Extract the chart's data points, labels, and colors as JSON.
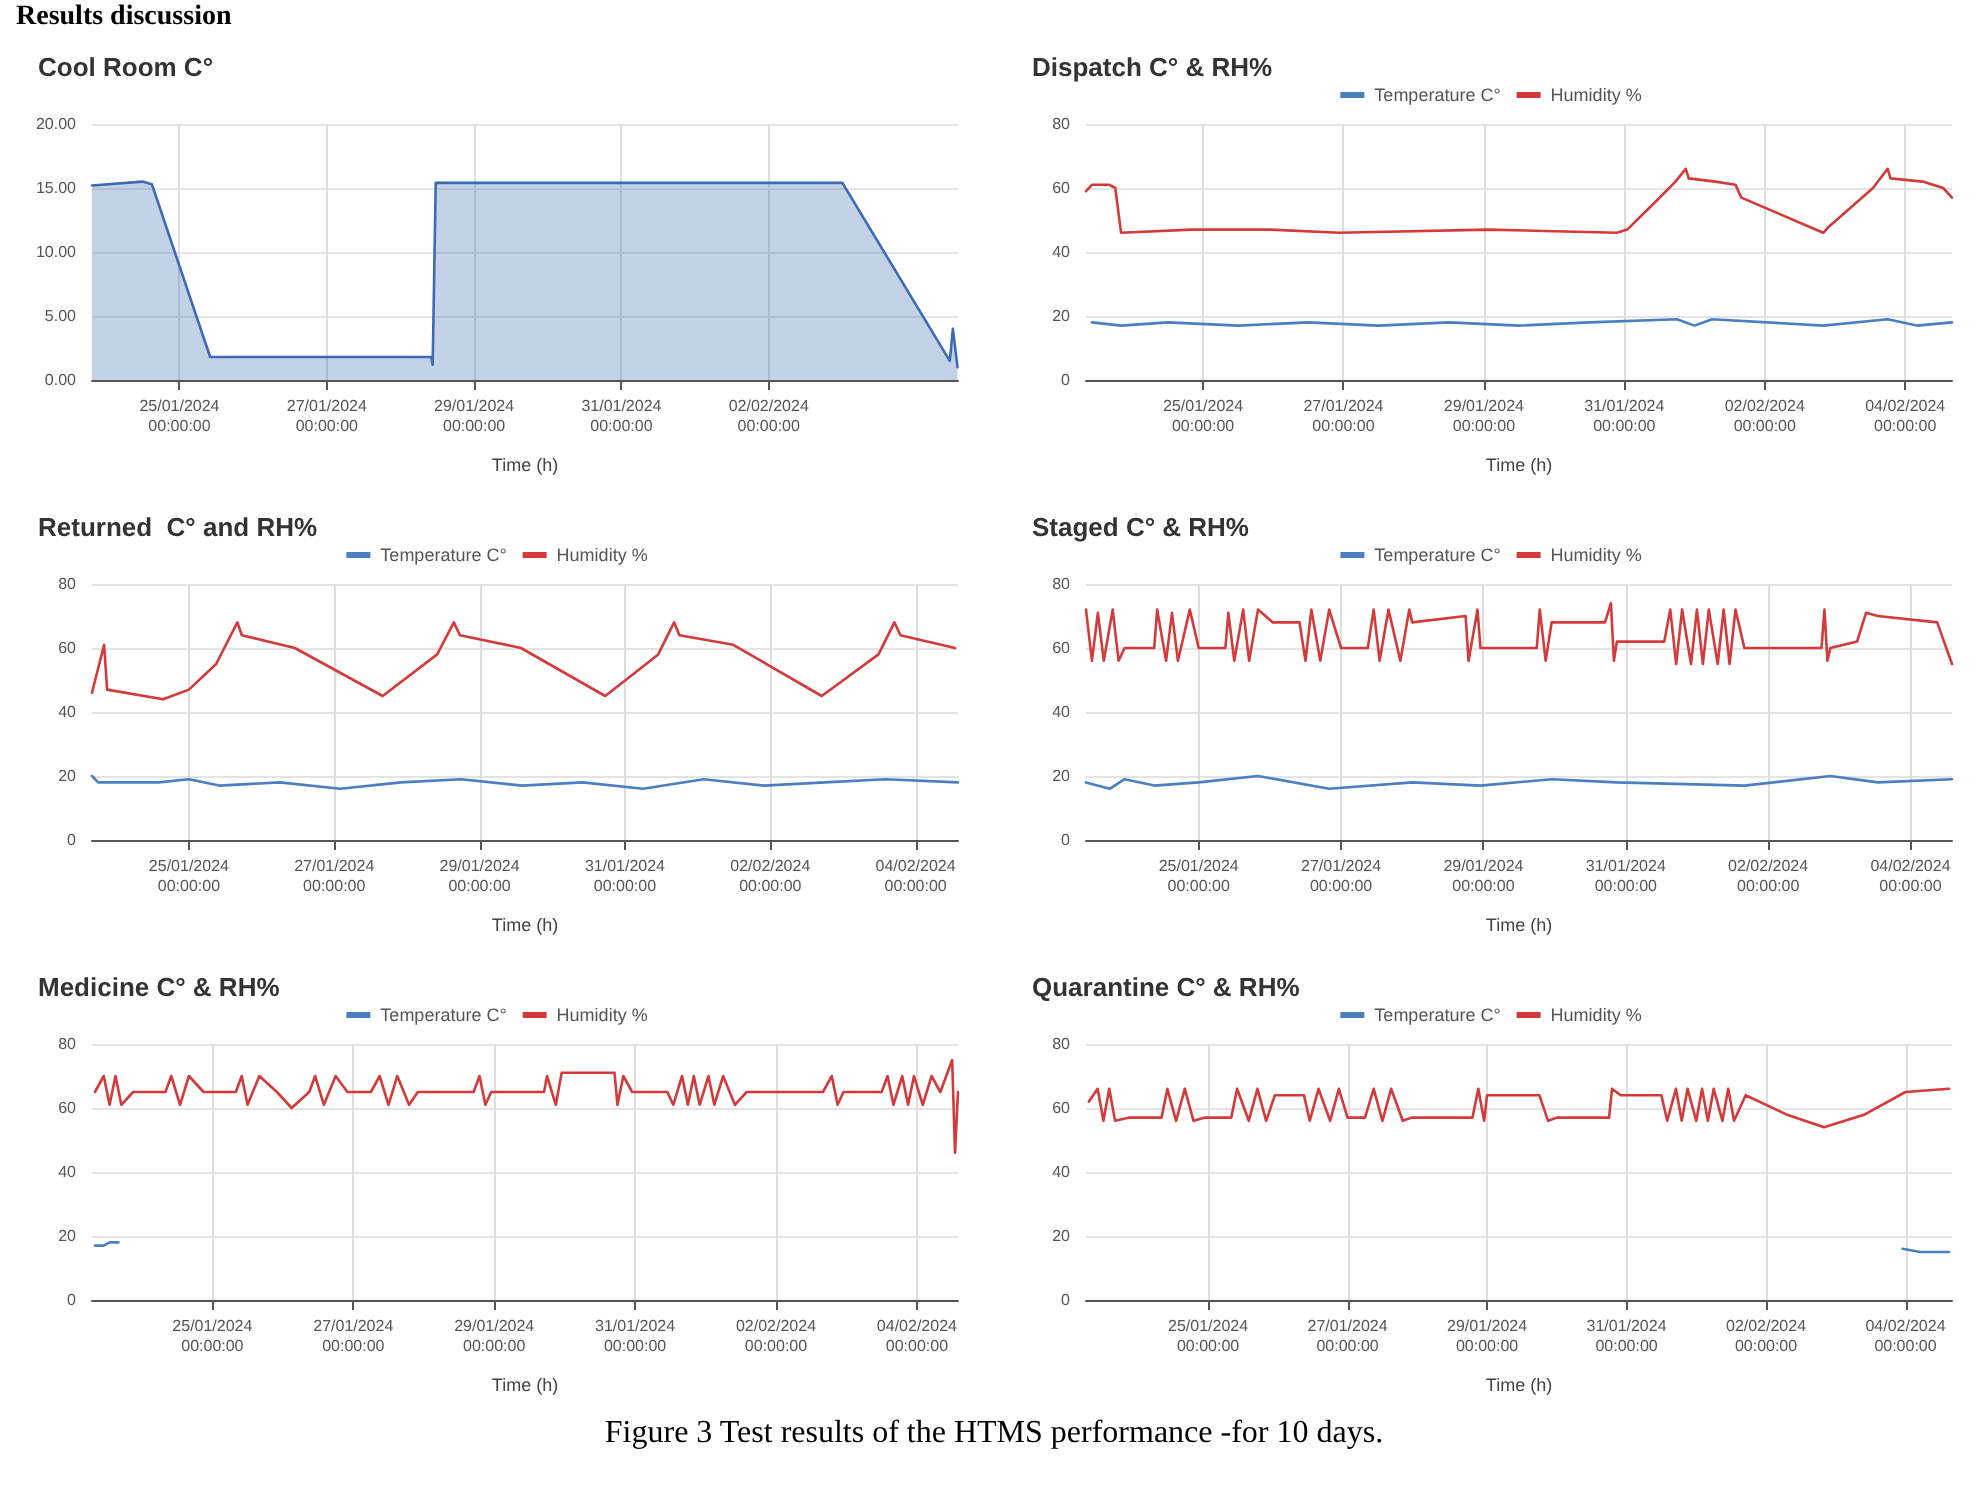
{
  "chart_data": [
    {
      "type": "area",
      "title": "Cool Room C°",
      "xlabel": "Time (h)",
      "annotations": [
        "Results discussion"
      ],
      "grid": true,
      "legend": false,
      "marker": "none",
      "xlim": [
        "2024-01-23T19:30",
        "2024-02-04T13:40"
      ],
      "xticks": [
        {
          "value": "2024-01-25",
          "label": "25/01/2024\n00:00:00"
        },
        {
          "value": "2024-01-27",
          "label": "27/01/2024\n00:00:00"
        },
        {
          "value": "2024-01-29",
          "label": "29/01/2024\n00:00:00"
        },
        {
          "value": "2024-01-31",
          "label": "31/01/2024\n00:00:00"
        },
        {
          "value": "2024-02-02",
          "label": "02/02/2024\n00:00:00"
        }
      ],
      "ylim": [
        0,
        20
      ],
      "yticks": [
        {
          "value": 0,
          "label": "0.00"
        },
        {
          "value": 5,
          "label": "5.00"
        },
        {
          "value": 10,
          "label": "10.00"
        },
        {
          "value": 15,
          "label": "15.00"
        },
        {
          "value": 20,
          "label": "20.00"
        }
      ],
      "series": [
        {
          "color": "#3d6bb3",
          "x": [
            "2024-01-23T19:30",
            "2024-01-24T12:00",
            "2024-01-24T15:00",
            "2024-01-25T10:00",
            "2024-01-28T10:00",
            "2024-01-28T10:30",
            "2024-01-28T11:30",
            "2024-02-03T00:00",
            "2024-02-04T11:00",
            "2024-02-04T12:00",
            "2024-02-04T13:30"
          ],
          "values": [
            15.2,
            15.5,
            15.3,
            1.8,
            1.8,
            1.2,
            15.4,
            15.4,
            1.5,
            4,
            1.0
          ]
        }
      ]
    },
    {
      "type": "line",
      "title": "Dispatch C° & RH%",
      "xlabel": "Time (h)",
      "grid": true,
      "legend": "top",
      "marker": "none",
      "xlim": [
        "2024-01-23T08:00",
        "2024-02-04T16:00"
      ],
      "xticks": [
        {
          "value": "2024-01-25",
          "label": "25/01/2024\n00:00:00"
        },
        {
          "value": "2024-01-27",
          "label": "27/01/2024\n00:00:00"
        },
        {
          "value": "2024-01-29",
          "label": "29/01/2024\n00:00:00"
        },
        {
          "value": "2024-01-31",
          "label": "31/01/2024\n00:00:00"
        },
        {
          "value": "2024-02-02",
          "label": "02/02/2024\n00:00:00"
        },
        {
          "value": "2024-02-04",
          "label": "04/02/2024\n00:00:00"
        }
      ],
      "ylim": [
        0,
        80
      ],
      "yticks": [
        0,
        20,
        40,
        60,
        80
      ],
      "series": [
        {
          "name": "Temperature C°",
          "color": "#4a7fc1",
          "x": [
            "2024-01-23T10:00",
            "2024-01-23T20:00",
            "2024-01-24T12:00",
            "2024-01-25T12:00",
            "2024-01-26T12:00",
            "2024-01-27T12:00",
            "2024-01-28T12:00",
            "2024-01-29T12:00",
            "2024-01-30T12:00",
            "2024-01-31T18:00",
            "2024-02-01T00:00",
            "2024-02-01T06:00",
            "2024-02-02T20:00",
            "2024-02-03T18:00",
            "2024-02-04T04:00",
            "2024-02-04T16:00"
          ],
          "values": [
            18,
            17,
            18,
            17,
            18,
            17,
            18,
            17,
            18,
            19,
            17,
            19,
            17,
            19,
            17,
            18
          ]
        },
        {
          "name": "Humidity %",
          "color": "#d43a3a",
          "x": [
            "2024-01-23T08:00",
            "2024-01-23T10:00",
            "2024-01-23T16:00",
            "2024-01-23T18:00",
            "2024-01-23T20:00",
            "2024-01-24T20:00",
            "2024-01-25T23:00",
            "2024-01-26T22:30",
            "2024-01-29T01:30",
            "2024-01-30T21:30",
            "2024-01-31T01:00",
            "2024-01-31T11:00",
            "2024-01-31T17:30",
            "2024-01-31T21:00",
            "2024-01-31T22:00",
            "2024-02-01T07:00",
            "2024-02-01T14:00",
            "2024-02-01T16:00",
            "2024-02-02T20:00",
            "2024-02-02T22:00",
            "2024-02-03T13:00",
            "2024-02-03T18:00",
            "2024-02-03T19:00",
            "2024-02-04T06:00",
            "2024-02-04T13:00",
            "2024-02-04T16:00"
          ],
          "values": [
            59,
            61,
            61,
            60,
            46,
            47,
            47,
            46,
            47,
            46,
            47,
            56,
            62,
            66,
            63,
            62,
            61,
            57,
            46,
            48,
            60,
            66,
            63,
            62,
            60,
            57
          ]
        }
      ]
    },
    {
      "type": "line",
      "title": "Returned  C° and RH%",
      "xlabel": "Time (h)",
      "grid": true,
      "legend": "top",
      "marker": "none",
      "xlim": [
        "2024-01-23T16:00",
        "2024-02-04T14:00"
      ],
      "xticks": [
        {
          "value": "2024-01-25",
          "label": "25/01/2024\n00:00:00"
        },
        {
          "value": "2024-01-27",
          "label": "27/01/2024\n00:00:00"
        },
        {
          "value": "2024-01-29",
          "label": "29/01/2024\n00:00:00"
        },
        {
          "value": "2024-01-31",
          "label": "31/01/2024\n00:00:00"
        },
        {
          "value": "2024-02-02",
          "label": "02/02/2024\n00:00:00"
        },
        {
          "value": "2024-02-04",
          "label": "04/02/2024\n00:00:00"
        }
      ],
      "ylim": [
        0,
        80
      ],
      "yticks": [
        0,
        20,
        40,
        60,
        80
      ],
      "series": [
        {
          "name": "Temperature C°",
          "color": "#4a7fc1",
          "x": [
            "2024-01-23T16:00",
            "2024-01-23T18:00",
            "2024-01-24T14:00",
            "2024-01-25T00:00",
            "2024-01-25T10:00",
            "2024-01-26T06:00",
            "2024-01-27T02:00",
            "2024-01-27T22:00",
            "2024-01-28T18:00",
            "2024-01-29T14:00",
            "2024-01-30T10:00",
            "2024-01-31T06:00",
            "2024-02-01T02:00",
            "2024-02-01T22:00",
            "2024-02-02T18:00",
            "2024-02-03T14:00",
            "2024-02-04T14:00"
          ],
          "values": [
            20,
            18,
            18,
            19,
            17,
            18,
            16,
            18,
            19,
            17,
            18,
            16,
            19,
            17,
            18,
            19,
            18
          ]
        },
        {
          "name": "Humidity %",
          "color": "#d43a3a",
          "x": [
            "2024-01-23T16:00",
            "2024-01-23T20:00",
            "2024-01-23T21:00",
            "2024-01-24T15:30",
            "2024-01-25T00:00",
            "2024-01-25T09:00",
            "2024-01-25T16:00",
            "2024-01-25T17:30",
            "2024-01-26T11:00",
            "2024-01-27T16:00",
            "2024-01-28T10:00",
            "2024-01-28T15:30",
            "2024-01-28T17:30",
            "2024-01-29T13:40",
            "2024-01-30T17:30",
            "2024-01-31T11:00",
            "2024-01-31T16:15",
            "2024-01-31T18:00",
            "2024-02-01T11:45",
            "2024-02-02T17:00",
            "2024-02-03T11:45",
            "2024-02-03T17:00",
            "2024-02-03T19:00",
            "2024-02-04T13:00"
          ],
          "values": [
            46,
            61,
            47,
            44,
            47,
            55,
            68,
            64,
            60,
            45,
            58,
            68,
            64,
            60,
            45,
            58,
            68,
            64,
            61,
            45,
            58,
            68,
            64,
            60
          ]
        }
      ]
    },
    {
      "type": "line",
      "title": "Staged C° & RH%",
      "xlabel": "Time (h)",
      "grid": true,
      "legend": "top",
      "marker": "none",
      "xlim": [
        "2024-01-23T10:00",
        "2024-02-04T14:00"
      ],
      "xticks": [
        {
          "value": "2024-01-25",
          "label": "25/01/2024\n00:00:00"
        },
        {
          "value": "2024-01-27",
          "label": "27/01/2024\n00:00:00"
        },
        {
          "value": "2024-01-29",
          "label": "29/01/2024\n00:00:00"
        },
        {
          "value": "2024-01-31",
          "label": "31/01/2024\n00:00:00"
        },
        {
          "value": "2024-02-02",
          "label": "02/02/2024\n00:00:00"
        },
        {
          "value": "2024-02-04",
          "label": "04/02/2024\n00:00:00"
        }
      ],
      "ylim": [
        0,
        80
      ],
      "yticks": [
        0,
        20,
        40,
        60,
        80
      ],
      "series": [
        {
          "name": "Temperature C°",
          "color": "#4a7fc1",
          "x": [
            "2024-01-23T10:00",
            "2024-01-23T18:00",
            "2024-01-23T23:00",
            "2024-01-24T09:00",
            "2024-01-25T00:00",
            "2024-01-25T20:00",
            "2024-01-26T20:00",
            "2024-01-28T00:00",
            "2024-01-28T23:00",
            "2024-01-29T23:00",
            "2024-01-30T21:00",
            "2024-02-01T16:00",
            "2024-02-02T21:00",
            "2024-02-03T13:00",
            "2024-02-04T14:00"
          ],
          "values": [
            18,
            16,
            19,
            17,
            18,
            20,
            16,
            18,
            17,
            19,
            18,
            17,
            20,
            18,
            19
          ]
        },
        {
          "name": "Humidity %",
          "color": "#d43a3a",
          "x": [
            "2024-01-23T10:00",
            "2024-01-23T12:00",
            "2024-01-23T14:00",
            "2024-01-23T16:00",
            "2024-01-23T19:00",
            "2024-01-23T21:00",
            "2024-01-23T23:00",
            "2024-01-24T09:00",
            "2024-01-24T10:00",
            "2024-01-24T13:00",
            "2024-01-24T15:00",
            "2024-01-24T17:00",
            "2024-01-24T21:00",
            "2024-01-25T00:00",
            "2024-01-25T09:00",
            "2024-01-25T10:00",
            "2024-01-25T12:00",
            "2024-01-25T15:00",
            "2024-01-25T17:00",
            "2024-01-25T20:00",
            "2024-01-26T01:00",
            "2024-01-26T10:00",
            "2024-01-26T12:00",
            "2024-01-26T14:00",
            "2024-01-26T17:00",
            "2024-01-26T20:00",
            "2024-01-27T00:00",
            "2024-01-27T09:00",
            "2024-01-27T11:00",
            "2024-01-27T13:00",
            "2024-01-27T16:00",
            "2024-01-27T20:00",
            "2024-01-27T23:00",
            "2024-01-28T00:00",
            "2024-01-28T18:00",
            "2024-01-28T19:00",
            "2024-01-28T22:00",
            "2024-01-28T23:00",
            "2024-01-29T18:00",
            "2024-01-29T19:00",
            "2024-01-29T21:00",
            "2024-01-29T23:00",
            "2024-01-30T17:00",
            "2024-01-30T19:00",
            "2024-01-30T20:00",
            "2024-01-30T21:00",
            "2024-01-31T13:00",
            "2024-01-31T15:00",
            "2024-01-31T17:00",
            "2024-01-31T19:00",
            "2024-01-31T22:00",
            "2024-02-01T00:00",
            "2024-02-01T02:00",
            "2024-02-01T04:00",
            "2024-02-01T07:00",
            "2024-02-01T09:00",
            "2024-02-01T11:00",
            "2024-02-01T13:00",
            "2024-02-01T16:00",
            "2024-02-02T18:00",
            "2024-02-02T19:00",
            "2024-02-02T20:00",
            "2024-02-02T21:00",
            "2024-02-03T06:00",
            "2024-02-03T09:00",
            "2024-02-03T13:00",
            "2024-02-04T09:00",
            "2024-02-04T14:00"
          ],
          "values": [
            72,
            56,
            71,
            56,
            72,
            56,
            60,
            60,
            72,
            56,
            71,
            56,
            72,
            60,
            60,
            71,
            56,
            72,
            56,
            72,
            68,
            68,
            56,
            72,
            56,
            72,
            60,
            60,
            72,
            56,
            72,
            56,
            72,
            68,
            70,
            56,
            72,
            60,
            60,
            72,
            56,
            68,
            68,
            74,
            56,
            62,
            62,
            72,
            55,
            72,
            55,
            72,
            55,
            72,
            55,
            72,
            55,
            72,
            60,
            60,
            72,
            56,
            60,
            62,
            71,
            70,
            68,
            55
          ]
        }
      ]
    },
    {
      "type": "line",
      "title": "Medicine C° & RH%",
      "xlabel": "Time (h)",
      "annotations": [
        "Figure 3 Test results of the HTMS performance -for 10 days."
      ],
      "grid": true,
      "legend": "top",
      "marker": "none",
      "xlim": [
        "2024-01-23T07:00",
        "2024-02-04T14:00"
      ],
      "xticks": [
        {
          "value": "2024-01-25",
          "label": "25/01/2024\n00:00:00"
        },
        {
          "value": "2024-01-27",
          "label": "27/01/2024\n00:00:00"
        },
        {
          "value": "2024-01-29",
          "label": "29/01/2024\n00:00:00"
        },
        {
          "value": "2024-01-31",
          "label": "31/01/2024\n00:00:00"
        },
        {
          "value": "2024-02-02",
          "label": "02/02/2024\n00:00:00"
        },
        {
          "value": "2024-02-04",
          "label": "04/02/2024\n00:00:00"
        }
      ],
      "ylim": [
        0,
        80
      ],
      "yticks": [
        0,
        20,
        40,
        60,
        80
      ],
      "series": [
        {
          "name": "Temperature C°",
          "color": "#4a7fc1",
          "x": [
            "2024-01-23T08:00",
            "2024-01-23T11:00",
            "2024-01-23T13:00",
            "2024-01-23T16:00"
          ],
          "values": [
            17,
            17,
            18,
            18
          ]
        },
        {
          "name": "Humidity %",
          "color": "#d43a3a",
          "x": [
            "2024-01-23T08:00",
            "2024-01-23T11:00",
            "2024-01-23T13:00",
            "2024-01-23T15:00",
            "2024-01-23T17:00",
            "2024-01-23T21:00",
            "2024-01-24T08:00",
            "2024-01-24T10:00",
            "2024-01-24T13:00",
            "2024-01-24T16:00",
            "2024-01-24T21:00",
            "2024-01-25T08:00",
            "2024-01-25T10:00",
            "2024-01-25T12:00",
            "2024-01-25T16:00",
            "2024-01-25T22:00",
            "2024-01-26T03:00",
            "2024-01-26T09:00",
            "2024-01-26T11:00",
            "2024-01-26T14:00",
            "2024-01-26T18:00",
            "2024-01-26T22:00",
            "2024-01-27T06:00",
            "2024-01-27T09:00",
            "2024-01-27T12:00",
            "2024-01-27T15:00",
            "2024-01-27T19:00",
            "2024-01-27T22:00",
            "2024-01-28T17:00",
            "2024-01-28T19:00",
            "2024-01-28T21:00",
            "2024-01-28T23:00",
            "2024-01-29T17:00",
            "2024-01-29T18:00",
            "2024-01-29T21:00",
            "2024-01-29T23:00",
            "2024-01-30T17:00",
            "2024-01-30T18:00",
            "2024-01-30T20:00",
            "2024-01-30T23:00",
            "2024-01-31T11:00",
            "2024-01-31T13:00",
            "2024-01-31T16:00",
            "2024-01-31T18:00",
            "2024-01-31T20:00",
            "2024-01-31T22:00",
            "2024-02-01T01:00",
            "2024-02-01T03:00",
            "2024-02-01T06:00",
            "2024-02-01T10:00",
            "2024-02-01T14:00",
            "2024-02-02T16:00",
            "2024-02-02T19:00",
            "2024-02-02T21:00",
            "2024-02-02T23:00",
            "2024-02-03T12:00",
            "2024-02-03T14:00",
            "2024-02-03T16:00",
            "2024-02-03T19:00",
            "2024-02-03T21:00",
            "2024-02-03T23:00",
            "2024-02-04T02:00",
            "2024-02-04T05:00",
            "2024-02-04T08:00",
            "2024-02-04T12:00",
            "2024-02-04T13:00",
            "2024-02-04T14:00"
          ],
          "values": [
            65,
            70,
            61,
            70,
            61,
            65,
            65,
            70,
            61,
            70,
            65,
            65,
            70,
            61,
            70,
            65,
            60,
            65,
            70,
            61,
            70,
            65,
            65,
            70,
            61,
            70,
            61,
            65,
            65,
            70,
            61,
            65,
            65,
            70,
            61,
            71,
            71,
            61,
            70,
            65,
            65,
            61,
            70,
            61,
            70,
            61,
            70,
            61,
            70,
            61,
            65,
            65,
            70,
            61,
            65,
            65,
            70,
            61,
            70,
            61,
            70,
            61,
            70,
            65,
            75,
            46,
            65
          ]
        }
      ]
    },
    {
      "type": "line",
      "title": "Quarantine C° & RH%",
      "xlabel": "Time (h)",
      "grid": true,
      "legend": "top",
      "marker": "none",
      "xlim": [
        "2024-01-23T06:00",
        "2024-02-04T16:00"
      ],
      "xticks": [
        {
          "value": "2024-01-25",
          "label": "25/01/2024\n00:00:00"
        },
        {
          "value": "2024-01-27",
          "label": "27/01/2024\n00:00:00"
        },
        {
          "value": "2024-01-29",
          "label": "29/01/2024\n00:00:00"
        },
        {
          "value": "2024-01-31",
          "label": "31/01/2024\n00:00:00"
        },
        {
          "value": "2024-02-02",
          "label": "02/02/2024\n00:00:00"
        },
        {
          "value": "2024-02-04",
          "label": "04/02/2024\n00:00:00"
        }
      ],
      "ylim": [
        0,
        80
      ],
      "yticks": [
        0,
        20,
        40,
        60,
        80
      ],
      "series": [
        {
          "name": "Temperature C°",
          "color": "#4a7fc1",
          "x": [
            "2024-02-03T23:00",
            "2024-02-04T05:00",
            "2024-02-04T15:00"
          ],
          "values": [
            16,
            15,
            15
          ]
        },
        {
          "name": "Humidity %",
          "color": "#d43a3a",
          "x": [
            "2024-01-23T07:00",
            "2024-01-23T10:00",
            "2024-01-23T12:00",
            "2024-01-23T14:00",
            "2024-01-23T16:00",
            "2024-01-23T21:00",
            "2024-01-24T08:00",
            "2024-01-24T10:00",
            "2024-01-24T13:00",
            "2024-01-24T16:00",
            "2024-01-24T19:00",
            "2024-01-24T23:00",
            "2024-01-25T08:00",
            "2024-01-25T10:00",
            "2024-01-25T14:00",
            "2024-01-25T17:00",
            "2024-01-25T20:00",
            "2024-01-25T23:00",
            "2024-01-26T09:00",
            "2024-01-26T11:00",
            "2024-01-26T14:00",
            "2024-01-26T18:00",
            "2024-01-26T21:00",
            "2024-01-27T00:00",
            "2024-01-27T06:00",
            "2024-01-27T09:00",
            "2024-01-27T12:00",
            "2024-01-27T15:00",
            "2024-01-27T19:00",
            "2024-01-27T22:00",
            "2024-01-28T19:00",
            "2024-01-28T21:00",
            "2024-01-28T23:00",
            "2024-01-29T00:00",
            "2024-01-29T18:00",
            "2024-01-29T21:00",
            "2024-01-30T00:00",
            "2024-01-30T18:00",
            "2024-01-30T19:00",
            "2024-01-30T22:00",
            "2024-01-31T12:00",
            "2024-01-31T14:00",
            "2024-01-31T17:00",
            "2024-01-31T19:00",
            "2024-01-31T21:00",
            "2024-02-01T00:00",
            "2024-02-01T02:00",
            "2024-02-01T04:00",
            "2024-02-01T06:00",
            "2024-02-01T09:00",
            "2024-02-01T11:00",
            "2024-02-01T13:00",
            "2024-02-01T17:00",
            "2024-02-02T07:00",
            "2024-02-02T20:00",
            "2024-02-03T10:00",
            "2024-02-04T00:00",
            "2024-02-04T15:00"
          ],
          "values": [
            62,
            66,
            56,
            66,
            56,
            57,
            57,
            66,
            56,
            66,
            56,
            57,
            57,
            66,
            56,
            66,
            56,
            64,
            64,
            56,
            66,
            56,
            66,
            57,
            57,
            66,
            56,
            66,
            56,
            57,
            57,
            66,
            56,
            64,
            64,
            56,
            57,
            57,
            66,
            64,
            64,
            56,
            66,
            56,
            66,
            56,
            66,
            56,
            66,
            56,
            66,
            56,
            64,
            58,
            54,
            58,
            65,
            66
          ]
        }
      ]
    }
  ]
}
